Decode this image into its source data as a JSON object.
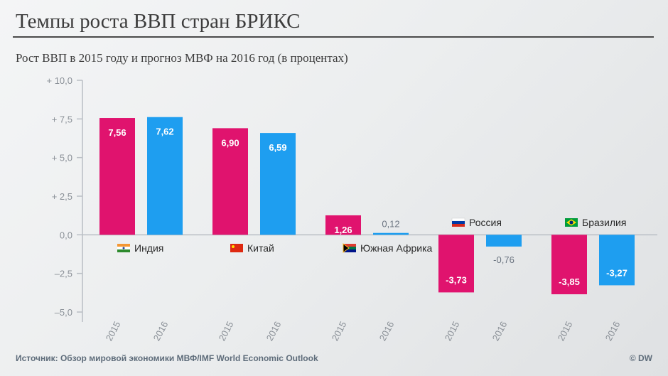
{
  "title": "Темпы роста ВВП стран БРИКС",
  "subtitle": "Рост ВВП в 2015 году и прогноз МВФ на 2016 год (в процентах)",
  "source": "Источник: Обзор мировой экономики МВФ/IMF World Economic Outlook",
  "credit": "© DW",
  "colors": {
    "y2015": "#e0136e",
    "y2016": "#1e9ef0",
    "axis": "#b9bec4"
  },
  "chart_data": {
    "type": "bar",
    "title": "Темпы роста ВВП стран БРИКС",
    "subtitle": "Рост ВВП в 2015 году и прогноз МВФ на 2016 год (в процентах)",
    "xlabel": "",
    "ylabel": "",
    "ylim": [
      -5.0,
      10.0
    ],
    "y_ticks": [
      10.0,
      7.5,
      5.0,
      2.5,
      0.0,
      -2.5,
      -5.0
    ],
    "y_tick_labels": [
      "+ 10,0",
      "+ 7,5",
      "+ 5,0",
      "+ 2,5",
      "0,0",
      "–2,5",
      "–5,0"
    ],
    "grid": false,
    "series": [
      {
        "name": "2015",
        "values": [
          7.56,
          6.9,
          1.26,
          -3.73,
          -3.85
        ],
        "labels": [
          "7,56",
          "6,90",
          "1,26",
          "-3,73",
          "-3,85"
        ]
      },
      {
        "name": "2016",
        "values": [
          7.62,
          6.59,
          0.12,
          -0.76,
          -3.27
        ],
        "labels": [
          "7,62",
          "6,59",
          "0,12",
          "-0,76",
          "-3,27"
        ]
      }
    ],
    "categories": [
      "Индия",
      "Китай",
      "Южная Африка",
      "Россия",
      "Бразилия"
    ],
    "flags": [
      "india-flag",
      "china-flag",
      "south-africa-flag",
      "russia-flag",
      "brazil-flag"
    ]
  }
}
